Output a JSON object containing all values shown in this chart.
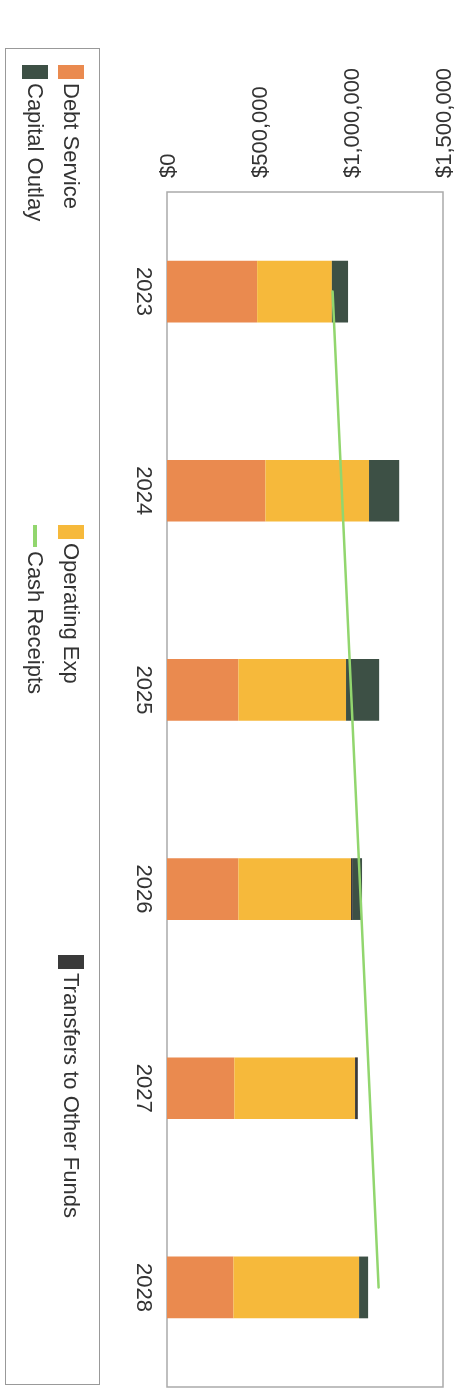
{
  "chart_data": {
    "type": "bar",
    "stacked": true,
    "orientation": "horizontal",
    "categories": [
      "2023",
      "2024",
      "2025",
      "2026",
      "2027",
      "2028"
    ],
    "series": [
      {
        "name": "Debt Service",
        "color": "#ea8a4f",
        "values": [
          490000,
          535000,
          388000,
          388000,
          366000,
          361000
        ]
      },
      {
        "name": "Operating Exp",
        "color": "#f6b93b",
        "values": [
          406000,
          563000,
          585000,
          612000,
          656000,
          683000
        ]
      },
      {
        "name": "Transfers to Other Funds",
        "color": "#3a3a3a",
        "values": [
          0,
          0,
          0,
          10000,
          15000,
          0
        ]
      },
      {
        "name": "Capital Outlay",
        "color": "#3d5045",
        "values": [
          88000,
          164000,
          180000,
          50000,
          0,
          49000
        ]
      },
      {
        "name": "Cash Receipts",
        "type": "line",
        "color": "#92d66e",
        "values": [
          900000,
          950000,
          1000000,
          1050000,
          1100000,
          1150000
        ]
      }
    ],
    "xlim": [
      0,
      1500000
    ],
    "xticks": [
      {
        "value": 0,
        "label": "$0"
      },
      {
        "value": 500000,
        "label": "$500,000"
      },
      {
        "value": 1000000,
        "label": "$1,000,000"
      },
      {
        "value": 1500000,
        "label": "$1,500,000"
      }
    ],
    "grid": false,
    "legend": "left",
    "marker": "none",
    "line_style": "solid"
  }
}
